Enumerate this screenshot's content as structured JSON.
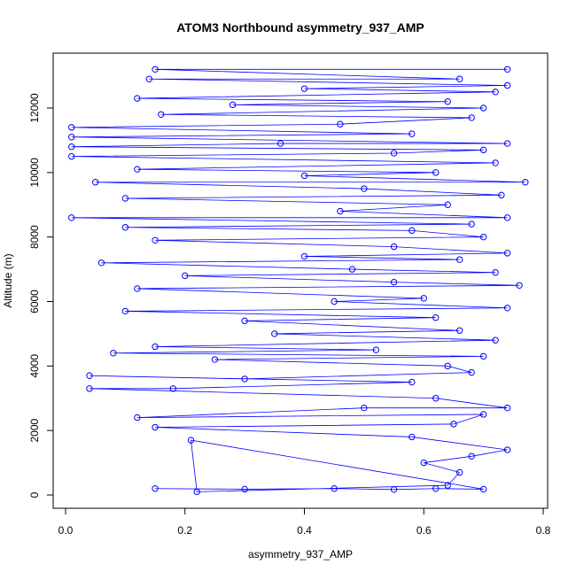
{
  "chart_data": {
    "type": "scatter",
    "title": "ATOM3 Northbound asymmetry_937_AMP",
    "xlabel": "asymmetry_937_AMP",
    "ylabel": "Altitude (m)",
    "xlim": [
      0.0,
      0.8
    ],
    "ylim": [
      0,
      13000
    ],
    "x_ticks": [
      0.0,
      0.2,
      0.4,
      0.6,
      0.8
    ],
    "x_tick_labels": [
      "0.0",
      "0.2",
      "0.4",
      "0.6",
      "0.8"
    ],
    "y_ticks": [
      0,
      2000,
      4000,
      6000,
      8000,
      10000,
      12000
    ],
    "y_tick_labels": [
      "0",
      "2000",
      "4000",
      "6000",
      "8000",
      "10000",
      "12000"
    ],
    "grid": false,
    "marker": "open-circle",
    "connected": true,
    "color": "#0000ff",
    "series": [
      {
        "points": [
          [
            0.15,
            200
          ],
          [
            0.3,
            180
          ],
          [
            0.45,
            200
          ],
          [
            0.55,
            170
          ],
          [
            0.62,
            200
          ],
          [
            0.7,
            180
          ],
          [
            0.21,
            1700
          ],
          [
            0.22,
            100
          ],
          [
            0.64,
            300
          ],
          [
            0.66,
            700
          ],
          [
            0.6,
            1000
          ],
          [
            0.68,
            1200
          ],
          [
            0.74,
            1400
          ],
          [
            0.58,
            1800
          ],
          [
            0.15,
            2100
          ],
          [
            0.65,
            2200
          ],
          [
            0.7,
            2500
          ],
          [
            0.12,
            2400
          ],
          [
            0.5,
            2700
          ],
          [
            0.74,
            2700
          ],
          [
            0.62,
            3000
          ],
          [
            0.04,
            3300
          ],
          [
            0.18,
            3300
          ],
          [
            0.58,
            3500
          ],
          [
            0.04,
            3700
          ],
          [
            0.3,
            3600
          ],
          [
            0.68,
            3800
          ],
          [
            0.64,
            4000
          ],
          [
            0.25,
            4200
          ],
          [
            0.7,
            4300
          ],
          [
            0.08,
            4400
          ],
          [
            0.52,
            4500
          ],
          [
            0.15,
            4600
          ],
          [
            0.72,
            4800
          ],
          [
            0.35,
            5000
          ],
          [
            0.66,
            5100
          ],
          [
            0.3,
            5400
          ],
          [
            0.62,
            5500
          ],
          [
            0.1,
            5700
          ],
          [
            0.74,
            5800
          ],
          [
            0.45,
            6000
          ],
          [
            0.6,
            6100
          ],
          [
            0.12,
            6400
          ],
          [
            0.76,
            6500
          ],
          [
            0.55,
            6600
          ],
          [
            0.2,
            6800
          ],
          [
            0.72,
            6900
          ],
          [
            0.48,
            7000
          ],
          [
            0.06,
            7200
          ],
          [
            0.66,
            7300
          ],
          [
            0.4,
            7400
          ],
          [
            0.74,
            7500
          ],
          [
            0.55,
            7700
          ],
          [
            0.15,
            7900
          ],
          [
            0.7,
            8000
          ],
          [
            0.58,
            8200
          ],
          [
            0.1,
            8300
          ],
          [
            0.68,
            8400
          ],
          [
            0.01,
            8600
          ],
          [
            0.74,
            8600
          ],
          [
            0.46,
            8800
          ],
          [
            0.64,
            9000
          ],
          [
            0.1,
            9200
          ],
          [
            0.73,
            9300
          ],
          [
            0.5,
            9500
          ],
          [
            0.05,
            9700
          ],
          [
            0.77,
            9700
          ],
          [
            0.4,
            9900
          ],
          [
            0.62,
            10000
          ],
          [
            0.12,
            10100
          ],
          [
            0.72,
            10300
          ],
          [
            0.01,
            10500
          ],
          [
            0.55,
            10600
          ],
          [
            0.7,
            10700
          ],
          [
            0.01,
            10800
          ],
          [
            0.36,
            10900
          ],
          [
            0.74,
            10900
          ],
          [
            0.01,
            11100
          ],
          [
            0.58,
            11200
          ],
          [
            0.01,
            11400
          ],
          [
            0.46,
            11500
          ],
          [
            0.68,
            11700
          ],
          [
            0.16,
            11800
          ],
          [
            0.7,
            12000
          ],
          [
            0.28,
            12100
          ],
          [
            0.64,
            12200
          ],
          [
            0.12,
            12300
          ],
          [
            0.72,
            12500
          ],
          [
            0.4,
            12600
          ],
          [
            0.74,
            12700
          ],
          [
            0.14,
            12900
          ],
          [
            0.66,
            12900
          ],
          [
            0.15,
            13200
          ],
          [
            0.74,
            13200
          ]
        ]
      }
    ]
  }
}
